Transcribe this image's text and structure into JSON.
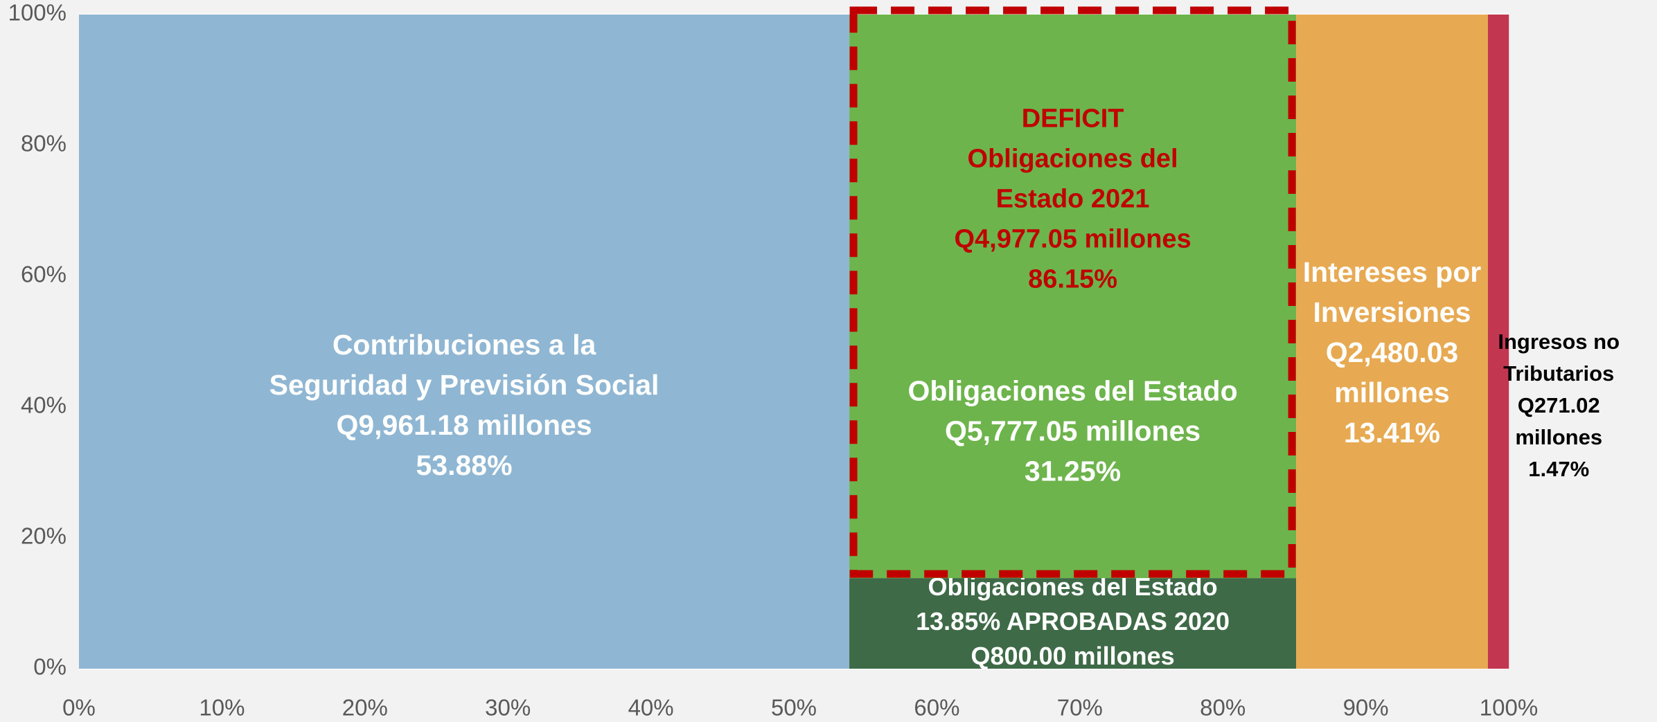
{
  "chart_data": {
    "type": "mekko",
    "xlim": [
      0,
      100
    ],
    "ylim": [
      0,
      100
    ],
    "xticks": [
      {
        "value": 0,
        "label": "0%"
      },
      {
        "value": 10,
        "label": "10%"
      },
      {
        "value": 20,
        "label": "20%"
      },
      {
        "value": 30,
        "label": "30%"
      },
      {
        "value": 40,
        "label": "40%"
      },
      {
        "value": 50,
        "label": "50%"
      },
      {
        "value": 60,
        "label": "60%"
      },
      {
        "value": 70,
        "label": "70%"
      },
      {
        "value": 80,
        "label": "80%"
      },
      {
        "value": 90,
        "label": "90%"
      },
      {
        "value": 100,
        "label": "100%"
      }
    ],
    "yticks": [
      {
        "value": 0,
        "label": "0%"
      },
      {
        "value": 20,
        "label": "20%"
      },
      {
        "value": 40,
        "label": "40%"
      },
      {
        "value": 60,
        "label": "60%"
      },
      {
        "value": 80,
        "label": "80%"
      },
      {
        "value": 100,
        "label": "100%"
      }
    ],
    "grid": true,
    "columns": [
      {
        "lines": [
          "Contribuciones a la",
          "Seguridad y Previsión Social",
          "Q9,961.18 millones"
        ],
        "width": 53.88,
        "width_label": "53.88%",
        "label_color": "#ffffff",
        "segments": [
          {
            "value": 100,
            "color": "#8fb6d2"
          }
        ]
      },
      {
        "lines": [
          "Obligaciones del Estado",
          "Q5,777.05 millones"
        ],
        "width": 31.25,
        "width_label": "31.25%",
        "label_color": "#ffffff",
        "segments": [
          {
            "value": 13.85,
            "color": "#3f6a47",
            "label_color": "#ffffff",
            "lines": [
              "Obligaciones del Estado",
              "13.85% APROBADAS 2020",
              "Q800.00 millones"
            ]
          },
          {
            "value": 86.15,
            "color": "#6db44c",
            "label_color": "#c00000",
            "outline": "#c00000",
            "lines": [
              "DEFICIT",
              "Obligaciones del",
              "Estado 2021",
              "Q4,977.05 millones"
            ],
            "value_label": "86.15%"
          }
        ]
      },
      {
        "lines": [
          "Intereses por",
          "Inversiones",
          "Q2,480.03",
          "millones"
        ],
        "width": 13.41,
        "width_label": "13.41%",
        "label_color": "#ffffff",
        "segments": [
          {
            "value": 100,
            "color": "#e7aa52"
          }
        ]
      },
      {
        "lines": [
          "Ingresos no",
          "Tributarios",
          "Q271.02",
          "millones"
        ],
        "width": 1.47,
        "width_label": "1.47%",
        "label_color": "#000000",
        "segments": [
          {
            "value": 100,
            "color": "#c2364f"
          }
        ]
      }
    ]
  }
}
